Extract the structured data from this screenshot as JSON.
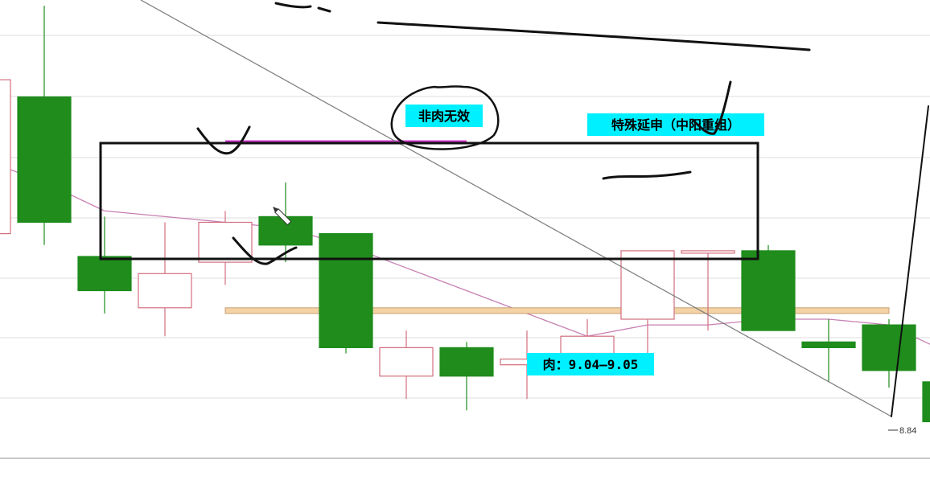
{
  "chart_data": {
    "type": "candlestick",
    "ylim": [
      8.8,
      9.59
    ],
    "grid": true,
    "colors": {
      "up_outline": "#d26e7e",
      "down_fill": "#1f8c1c",
      "moving_average": "#c77fb2",
      "annotation_bg": "#00f0ff",
      "support_band": "#f3d2a6",
      "support_band_border": "#c9a074",
      "purple_line": "#cc33cc",
      "trendline": "#7a7a7a",
      "ink": "#111111",
      "grid": "#dedede"
    },
    "candles": [
      {
        "open": 9.18,
        "close": 9.45,
        "high": 9.48,
        "low": 9.1,
        "dir": "up"
      },
      {
        "open": 9.42,
        "close": 9.2,
        "high": 9.58,
        "low": 9.16,
        "dir": "down"
      },
      {
        "open": 9.14,
        "close": 9.08,
        "high": 9.21,
        "low": 9.04,
        "dir": "down"
      },
      {
        "open": 9.05,
        "close": 9.11,
        "high": 9.2,
        "low": 9.0,
        "dir": "up"
      },
      {
        "open": 9.13,
        "close": 9.2,
        "high": 9.22,
        "low": 9.09,
        "dir": "up"
      },
      {
        "open": 9.21,
        "close": 9.16,
        "high": 9.27,
        "low": 9.13,
        "dir": "down"
      },
      {
        "open": 9.18,
        "close": 8.98,
        "high": 9.18,
        "low": 8.97,
        "dir": "down"
      },
      {
        "open": 8.93,
        "close": 8.98,
        "high": 9.01,
        "low": 8.89,
        "dir": "up"
      },
      {
        "open": 8.98,
        "close": 8.93,
        "high": 8.99,
        "low": 8.87,
        "dir": "down"
      },
      {
        "open": 8.95,
        "close": 8.96,
        "high": 9.01,
        "low": 8.89,
        "dir": "up"
      },
      {
        "open": 8.97,
        "close": 9.0,
        "high": 9.03,
        "low": 8.94,
        "dir": "up"
      },
      {
        "open": 9.03,
        "close": 9.15,
        "high": 9.15,
        "low": 8.97,
        "dir": "up"
      },
      {
        "open": 9.15,
        "close": 9.15,
        "high": 9.15,
        "low": 9.01,
        "dir": "up"
      },
      {
        "open": 9.15,
        "close": 9.01,
        "high": 9.16,
        "low": 9.01,
        "dir": "down"
      },
      {
        "open": 8.99,
        "close": 8.98,
        "high": 9.03,
        "low": 8.92,
        "dir": "down"
      },
      {
        "open": 9.02,
        "close": 8.94,
        "high": 9.03,
        "low": 8.91,
        "dir": "down"
      },
      {
        "open": 8.92,
        "close": 8.85,
        "high": 8.92,
        "low": 8.85,
        "dir": "down"
      }
    ],
    "moving_average": [
      9.31,
      9.27,
      9.22,
      9.21,
      9.2,
      9.19,
      9.16,
      9.12,
      9.08,
      9.04,
      9.0,
      9.02,
      9.02,
      9.03,
      9.03,
      9.02,
      8.97
    ],
    "annotations": [
      {
        "text": "非肉无效"
      },
      {
        "text": "特殊延申（中阳重组）"
      },
      {
        "text": "肉：9.04—9.05"
      }
    ],
    "price_tag": "8.84"
  }
}
